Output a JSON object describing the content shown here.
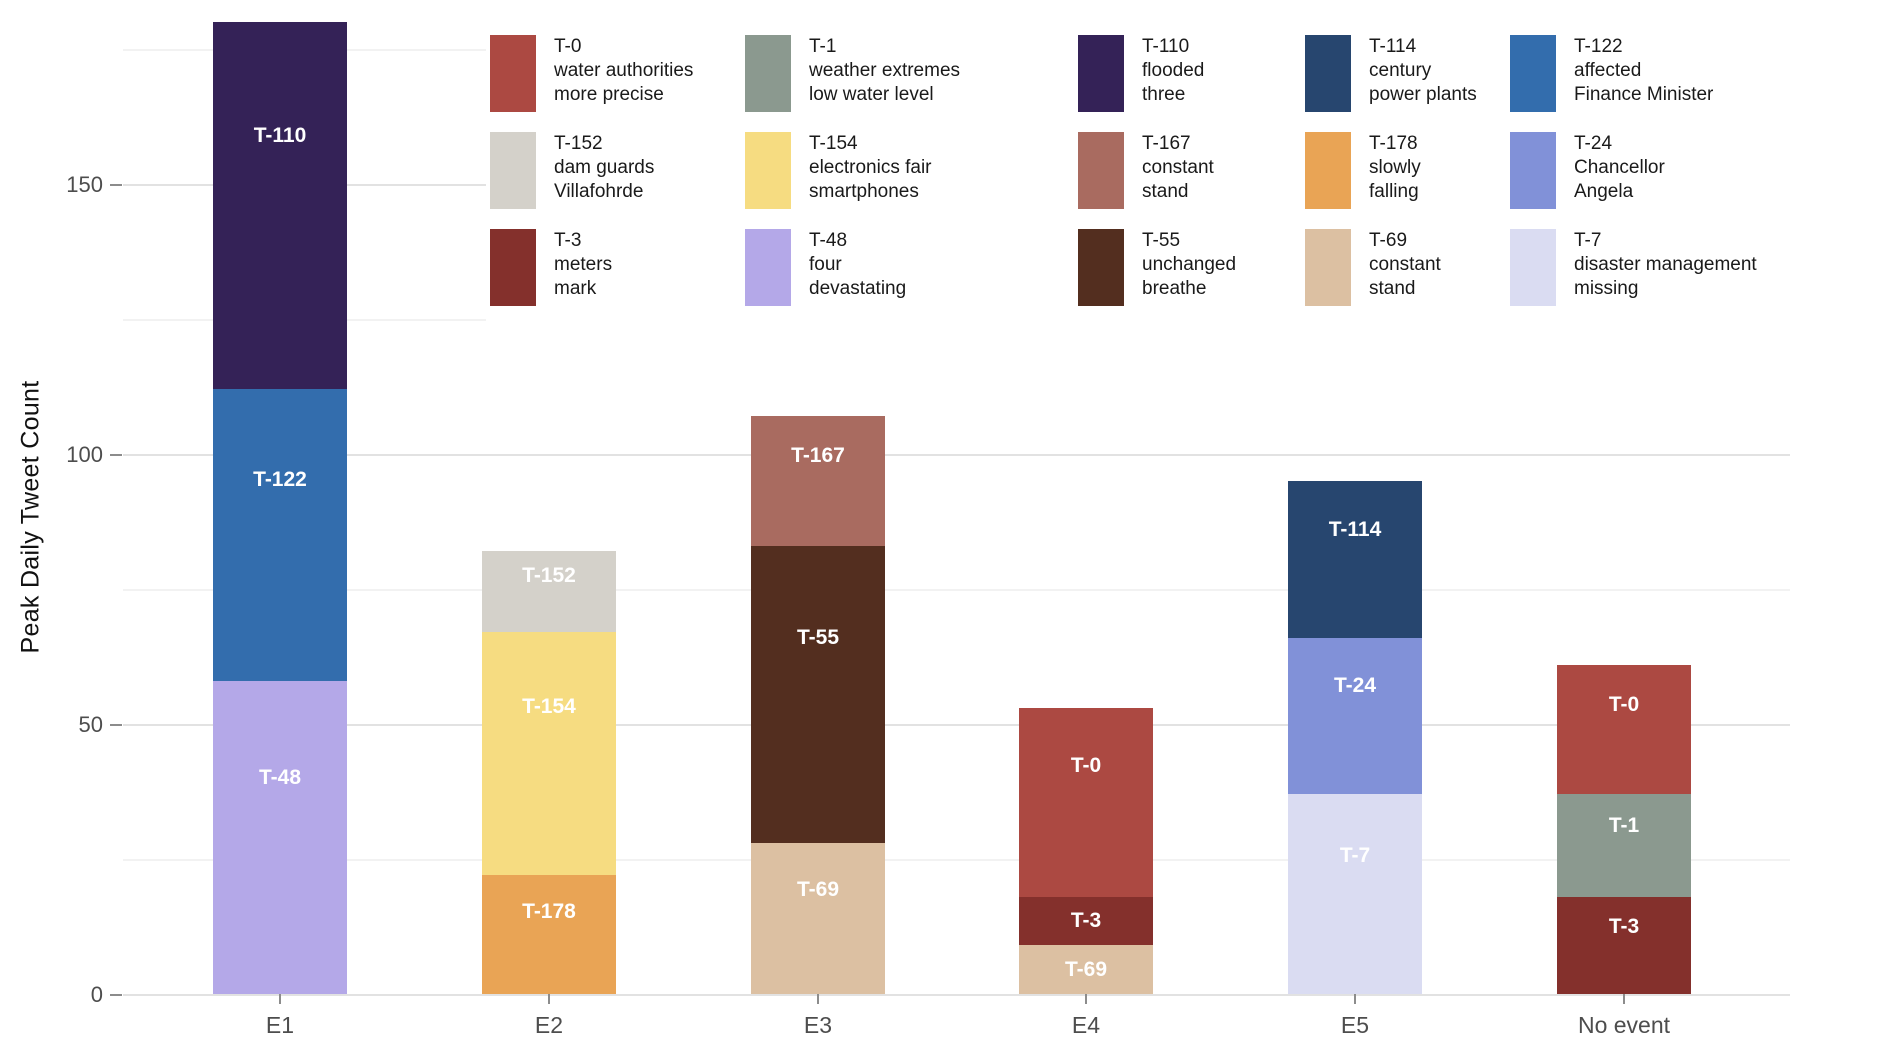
{
  "chart_data": {
    "type": "bar",
    "stacked": true,
    "title": "",
    "xlabel": "",
    "ylabel": "Peak Daily Tweet Count",
    "ylim": [
      0,
      180
    ],
    "yticks": [
      0,
      50,
      100,
      150
    ],
    "yticks_minor": [
      25,
      75,
      125,
      175
    ],
    "grid": true,
    "legend_position": "top",
    "categories": [
      "E1",
      "E2",
      "E3",
      "E4",
      "E5",
      "No event"
    ],
    "topics": {
      "T-0": {
        "label": "T-0",
        "desc1": "water authorities",
        "desc2": "more precise",
        "color": "#ac4942"
      },
      "T-1": {
        "label": "T-1",
        "desc1": "weather extremes",
        "desc2": "low water level",
        "color": "#8b998f"
      },
      "T-110": {
        "label": "T-110",
        "desc1": "flooded",
        "desc2": "three",
        "color": "#342257"
      },
      "T-114": {
        "label": "T-114",
        "desc1": "century",
        "desc2": "power plants",
        "color": "#27466f"
      },
      "T-122": {
        "label": "T-122",
        "desc1": "affected",
        "desc2": "Finance Minister",
        "color": "#336dad"
      },
      "T-152": {
        "label": "T-152",
        "desc1": "dam guards",
        "desc2": "Villafohrde",
        "color": "#d4d1ca"
      },
      "T-154": {
        "label": "T-154",
        "desc1": "electronics fair",
        "desc2": "smartphones",
        "color": "#f6dc81"
      },
      "T-167": {
        "label": "T-167",
        "desc1": "constant",
        "desc2": "stand",
        "color": "#a96b60"
      },
      "T-178": {
        "label": "T-178",
        "desc1": "slowly",
        "desc2": "falling",
        "color": "#e9a455"
      },
      "T-24": {
        "label": "T-24",
        "desc1": "Chancellor",
        "desc2": "Angela",
        "color": "#8191d8"
      },
      "T-3": {
        "label": "T-3",
        "desc1": "meters",
        "desc2": "mark",
        "color": "#84302c"
      },
      "T-48": {
        "label": "T-48",
        "desc1": "four",
        "desc2": "devastating",
        "color": "#b4a8e8"
      },
      "T-55": {
        "label": "T-55",
        "desc1": "unchanged",
        "desc2": "breathe",
        "color": "#532e1f"
      },
      "T-69": {
        "label": "T-69",
        "desc1": "constant",
        "desc2": "stand",
        "color": "#dcc0a2"
      },
      "T-7": {
        "label": "T-7",
        "desc1": "disaster management",
        "desc2": "missing",
        "color": "#dadcf2"
      }
    },
    "legend_order": [
      "T-0",
      "T-1",
      "T-110",
      "T-114",
      "T-122",
      "T-152",
      "T-154",
      "T-167",
      "T-178",
      "T-24",
      "T-3",
      "T-48",
      "T-55",
      "T-69",
      "T-7"
    ],
    "bars": [
      {
        "category": "E1",
        "segments": [
          {
            "topic": "T-48",
            "value": 58
          },
          {
            "topic": "T-122",
            "value": 54
          },
          {
            "topic": "T-110",
            "value": 68
          }
        ]
      },
      {
        "category": "E2",
        "segments": [
          {
            "topic": "T-178",
            "value": 22
          },
          {
            "topic": "T-154",
            "value": 45
          },
          {
            "topic": "T-152",
            "value": 15
          }
        ]
      },
      {
        "category": "E3",
        "segments": [
          {
            "topic": "T-69",
            "value": 28
          },
          {
            "topic": "T-55",
            "value": 55
          },
          {
            "topic": "T-167",
            "value": 24
          }
        ]
      },
      {
        "category": "E4",
        "segments": [
          {
            "topic": "T-69",
            "value": 9
          },
          {
            "topic": "T-3",
            "value": 9
          },
          {
            "topic": "T-0",
            "value": 35
          }
        ]
      },
      {
        "category": "E5",
        "segments": [
          {
            "topic": "T-7",
            "value": 37
          },
          {
            "topic": "T-24",
            "value": 29
          },
          {
            "topic": "T-114",
            "value": 29
          }
        ]
      },
      {
        "category": "No event",
        "segments": [
          {
            "topic": "T-3",
            "value": 18
          },
          {
            "topic": "T-1",
            "value": 19
          },
          {
            "topic": "T-0",
            "value": 24
          }
        ]
      }
    ]
  }
}
